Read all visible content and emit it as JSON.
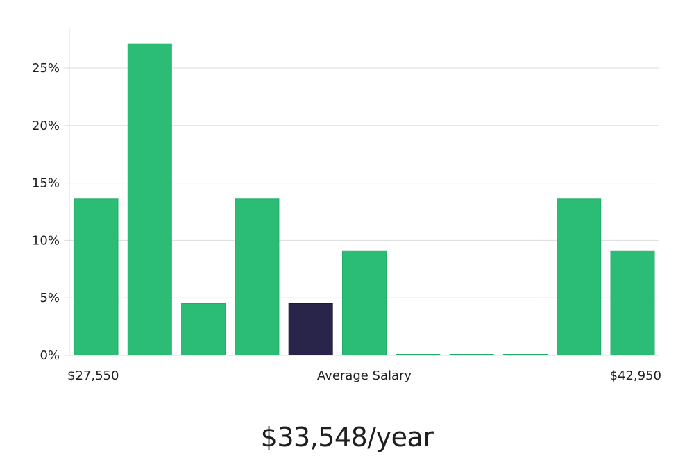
{
  "chart_data": {
    "type": "bar",
    "title": "",
    "xlabel": "Average Salary",
    "ylabel": "",
    "x_min_label": "$27,550",
    "x_max_label": "$42,950",
    "ylim": [
      0,
      28
    ],
    "yticks": [
      0,
      5,
      10,
      15,
      20,
      25
    ],
    "ytick_labels": [
      "0%",
      "5%",
      "10%",
      "15%",
      "20%",
      "25%"
    ],
    "values": [
      13.6,
      27.1,
      4.5,
      13.6,
      4.5,
      9.1,
      0,
      0,
      0,
      13.6,
      9.1
    ],
    "highlight_index": 4,
    "colors": {
      "bar": "#2bbd76",
      "bar_edge": "#1fae66",
      "highlight": "#28244a",
      "grid": "#dddddd",
      "axis": "#dddddd"
    },
    "grid": true
  },
  "summary": {
    "salary_text": "$33,548/year"
  }
}
